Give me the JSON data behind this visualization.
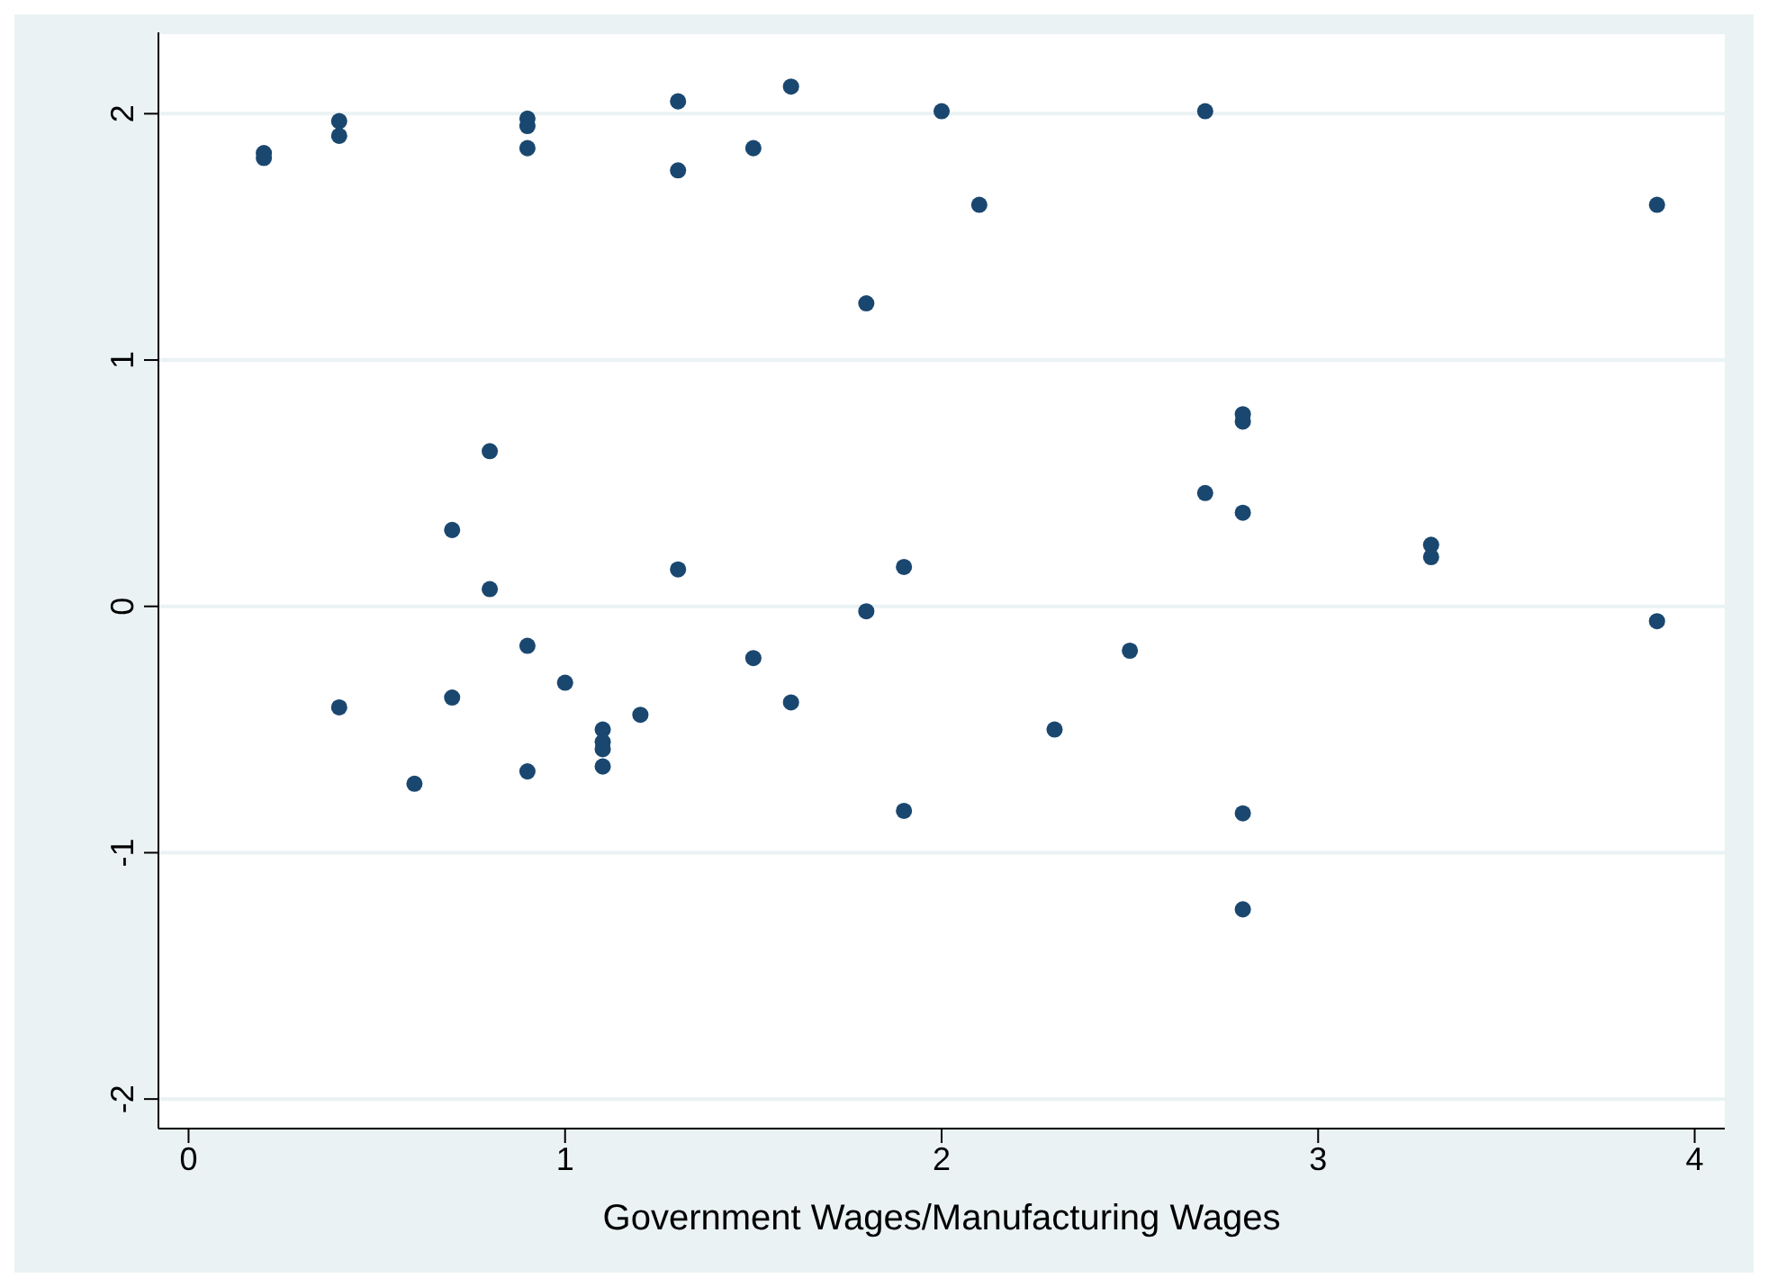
{
  "chart_data": {
    "type": "scatter",
    "xlabel": "Government Wages/Manufacturing Wages",
    "x": [
      0.2,
      0.2,
      0.4,
      0.4,
      0.9,
      0.9,
      0.9,
      1.3,
      1.3,
      1.5,
      1.6,
      2.0,
      2.7,
      2.1,
      3.9,
      1.8,
      2.8,
      2.8,
      0.8,
      2.7,
      2.8,
      0.7,
      3.3,
      3.3,
      0.8,
      1.3,
      1.9,
      1.8,
      3.9,
      0.9,
      2.5,
      1.5,
      1.0,
      0.7,
      1.6,
      0.4,
      1.2,
      1.1,
      1.1,
      1.1,
      1.1,
      2.3,
      0.9,
      0.6,
      1.9,
      2.8,
      2.8
    ],
    "series": [
      {
        "color": "#1a476f",
        "values": [
          1.84,
          1.82,
          1.97,
          1.91,
          1.98,
          1.95,
          1.86,
          2.05,
          1.77,
          1.86,
          2.11,
          2.01,
          2.01,
          1.63,
          1.63,
          1.23,
          0.78,
          0.75,
          0.63,
          0.46,
          0.38,
          0.31,
          0.25,
          0.2,
          0.07,
          0.15,
          0.16,
          -0.02,
          -0.06,
          -0.16,
          -0.18,
          -0.21,
          -0.31,
          -0.37,
          -0.39,
          -0.41,
          -0.44,
          -0.5,
          -0.55,
          -0.58,
          -0.65,
          -0.5,
          -0.67,
          -0.72,
          -0.83,
          -0.84,
          -1.23
        ]
      }
    ],
    "xlim": [
      -0.08,
      4.08
    ],
    "xticks": [
      0,
      1,
      2,
      3,
      4
    ],
    "ylim": [
      -2.12,
      2.33
    ],
    "yticks": [
      -2,
      -1,
      0,
      1,
      2
    ],
    "grid": "y",
    "marker": "circle"
  }
}
